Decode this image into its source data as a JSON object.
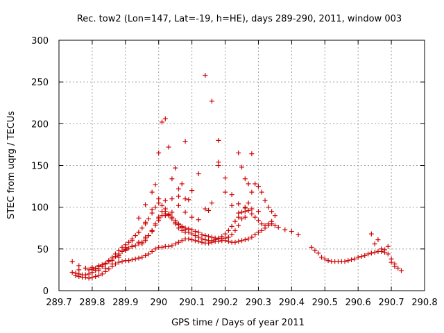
{
  "chart_data": {
    "type": "scatter",
    "title": "Rec. tow2 (Lon=147, Lat=-19, h=HE), days 289-290, 2011, window 003",
    "xlabel": "GPS time / Days of year 2011",
    "ylabel": "STEC from uqrg / TECUs",
    "xlim": [
      289.7,
      290.8
    ],
    "ylim": [
      0,
      300
    ],
    "xticks": [
      "289.7",
      "289.8",
      "289.9",
      "290",
      "290.1",
      "290.2",
      "290.3",
      "290.4",
      "290.5",
      "290.6",
      "290.7",
      "290.8"
    ],
    "yticks": [
      "0",
      "50",
      "100",
      "150",
      "200",
      "250",
      "300"
    ],
    "grid": true,
    "marker": "+",
    "marker_color": "#cc0000",
    "series": [
      {
        "x": [
          289.75,
          289.76,
          289.77,
          289.78,
          289.79,
          289.8,
          289.81,
          289.82,
          289.83,
          289.84,
          289.85,
          289.86,
          289.87,
          289.88,
          289.89,
          289.9,
          289.91,
          289.92,
          289.93,
          289.94,
          289.95,
          289.96,
          289.97,
          289.98,
          289.99,
          290.0,
          290.01,
          290.02,
          290.03,
          290.04,
          290.05,
          290.06,
          290.07,
          290.08,
          290.09,
          290.1,
          290.11,
          290.12,
          290.13,
          290.14,
          290.15,
          290.16,
          290.17,
          290.18,
          290.19,
          290.2,
          290.21,
          290.22,
          290.23,
          290.24,
          290.25,
          290.26,
          290.27,
          290.28,
          290.29,
          290.3,
          290.31,
          290.32,
          290.33,
          290.34,
          290.35,
          290.36,
          290.38,
          290.4,
          290.42
        ],
        "y": [
          18,
          17,
          16,
          16,
          15,
          16,
          17,
          18,
          20,
          23,
          26,
          29,
          32,
          34,
          35,
          36,
          36,
          37,
          38,
          39,
          40,
          42,
          44,
          47,
          50,
          52,
          52,
          53,
          53,
          54,
          56,
          58,
          60,
          62,
          62,
          61,
          60,
          59,
          58,
          57,
          57,
          58,
          59,
          59,
          60,
          60,
          59,
          58,
          58,
          59,
          60,
          61,
          62,
          64,
          67,
          70,
          72,
          75,
          78,
          80,
          78,
          76,
          73,
          71,
          67
        ]
      },
      {
        "x": [
          289.75,
          289.76,
          289.77,
          289.78,
          289.79,
          289.8,
          289.81,
          289.82,
          289.83,
          289.84,
          289.85,
          289.86,
          289.87,
          289.88,
          289.89,
          289.9,
          289.91,
          289.92,
          289.93,
          289.94,
          289.95,
          289.96,
          289.97,
          289.98,
          289.99,
          290.0,
          290.01,
          290.02,
          290.03,
          290.04,
          290.05,
          290.06,
          290.07,
          290.08,
          290.09,
          290.1,
          290.11,
          290.12,
          290.13,
          290.14,
          290.15,
          290.16,
          290.17,
          290.18,
          290.19,
          290.2,
          290.21,
          290.22,
          290.23,
          290.24,
          290.25,
          290.26,
          290.27,
          290.28,
          290.29,
          290.3,
          290.31,
          290.32,
          290.33,
          290.34
        ],
        "y": [
          21,
          20,
          19,
          19,
          20,
          22,
          24,
          26,
          29,
          32,
          35,
          38,
          41,
          44,
          47,
          49,
          51,
          53,
          54,
          56,
          58,
          62,
          66,
          71,
          78,
          86,
          90,
          92,
          90,
          86,
          82,
          79,
          76,
          73,
          70,
          68,
          66,
          64,
          62,
          61,
          60,
          60,
          61,
          62,
          65,
          68,
          72,
          77,
          83,
          88,
          94,
          99,
          96,
          92,
          88,
          84,
          80,
          78,
          80,
          83
        ]
      },
      {
        "x": [
          289.79,
          289.8,
          289.81,
          289.82,
          289.83,
          289.84,
          289.85,
          289.86,
          289.87,
          289.88,
          289.89,
          289.9,
          289.91,
          289.92,
          289.93,
          289.94,
          289.95,
          289.96,
          289.97,
          289.98,
          289.99,
          290.0,
          290.01,
          290.02,
          290.03,
          290.04,
          290.05,
          290.06,
          290.07,
          290.08,
          290.09,
          290.1,
          290.11,
          290.12,
          290.13,
          290.14,
          290.15,
          290.16,
          290.17,
          290.18,
          290.19,
          290.2,
          290.21,
          290.22,
          290.23,
          290.24,
          290.25,
          290.26,
          290.27,
          290.28,
          290.29,
          290.3,
          290.31,
          290.32,
          290.33,
          290.34,
          290.35
        ],
        "y": [
          25,
          26,
          27,
          29,
          31,
          33,
          36,
          40,
          44,
          48,
          52,
          55,
          58,
          62,
          66,
          70,
          75,
          80,
          86,
          93,
          100,
          110,
          102,
          95,
          91,
          88,
          84,
          80,
          77,
          75,
          74,
          73,
          71,
          70,
          67,
          66,
          65,
          64,
          63,
          63,
          62,
          63,
          64,
          67,
          72,
          78,
          86,
          95,
          105,
          118,
          128,
          125,
          118,
          108,
          100,
          95,
          90
        ]
      },
      {
        "x": [
          289.74,
          289.76,
          289.78,
          289.8,
          289.82,
          289.84,
          289.86,
          289.88,
          289.9,
          289.92,
          289.94,
          289.96,
          289.98,
          290.0,
          290.02,
          290.04,
          290.06,
          290.08,
          290.1,
          290.12,
          290.14,
          290.16,
          290.18,
          290.2,
          290.22,
          290.24,
          290.26
        ],
        "y": [
          22,
          25,
          27,
          28,
          30,
          32,
          36,
          42,
          50,
          60,
          70,
          82,
          97,
          105,
          108,
          110,
          113,
          94,
          88,
          85,
          98,
          105,
          150,
          118,
          102,
          93,
          88
        ]
      },
      {
        "x": [
          289.74,
          289.76,
          289.78,
          289.8,
          289.82,
          289.84,
          289.86,
          289.88,
          289.9,
          289.92,
          289.94,
          289.96,
          289.98,
          290.0,
          290.02,
          290.04,
          290.06,
          290.08,
          290.1,
          290.12,
          290.14,
          290.16,
          290.18,
          290.2,
          290.22,
          290.24,
          290.26,
          290.28,
          290.3
        ],
        "y": [
          35,
          30,
          27,
          25,
          24,
          27,
          32,
          40,
          48,
          53,
          58,
          64,
          72,
          84,
          90,
          94,
          102,
          110,
          120,
          140,
          258,
          227,
          180,
          135,
          115,
          104,
          100,
          98,
          95
        ]
      },
      {
        "x": [
          289.9,
          289.92,
          289.94,
          289.96,
          289.98,
          289.99,
          290.0,
          290.01,
          290.02,
          290.03,
          290.04,
          290.05,
          290.06,
          290.07,
          290.08,
          290.09,
          290.15,
          290.18,
          290.24,
          290.25,
          290.26,
          290.27,
          290.28
        ],
        "y": [
          52,
          53,
          87,
          103,
          118,
          127,
          165,
          202,
          206,
          172,
          134,
          147,
          122,
          128,
          179,
          109,
          96,
          154,
          165,
          148,
          134,
          128,
          164
        ]
      },
      {
        "x": [
          289.95,
          289.96,
          289.97,
          289.98,
          289.99,
          290.0,
          290.01,
          290.02,
          290.03,
          290.04,
          290.05,
          290.06,
          290.07,
          290.08
        ],
        "y": [
          56,
          60,
          66,
          72,
          80,
          88,
          95,
          98,
          92,
          86,
          80,
          75,
          72,
          70
        ]
      },
      {
        "x": [
          290.46,
          290.47,
          290.48,
          290.49,
          290.5,
          290.51,
          290.52,
          290.53,
          290.54,
          290.55,
          290.56,
          290.57,
          290.58,
          290.59,
          290.6,
          290.61,
          290.62,
          290.63,
          290.64,
          290.65,
          290.66,
          290.67,
          290.68,
          290.69,
          290.7,
          290.71,
          290.72,
          290.73
        ],
        "y": [
          52,
          48,
          45,
          40,
          38,
          36,
          35,
          35,
          35,
          35,
          35,
          36,
          37,
          38,
          40,
          41,
          42,
          44,
          45,
          46,
          47,
          47,
          49,
          44,
          38,
          32,
          27,
          24
        ]
      },
      {
        "x": [
          290.64,
          290.65,
          290.66,
          290.67,
          290.68,
          290.69,
          290.7,
          290.71
        ],
        "y": [
          68,
          56,
          61,
          50,
          46,
          53,
          34,
          29
        ]
      }
    ]
  }
}
